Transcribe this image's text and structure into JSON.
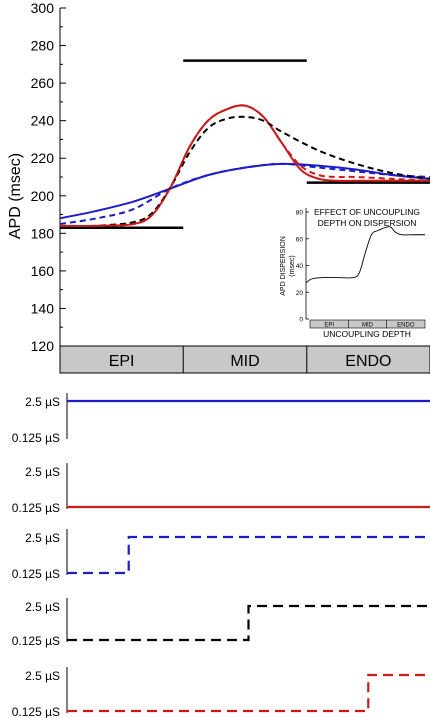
{
  "chart_data": [
    {
      "type": "line",
      "ylabel": "APD (msec)",
      "ylim": [
        120,
        300
      ],
      "yticks": [
        120,
        140,
        160,
        180,
        200,
        220,
        240,
        260,
        280,
        300
      ],
      "xlim": [
        0,
        1
      ],
      "regions": [
        "EPI",
        "MID",
        "ENDO"
      ],
      "region_bounds": [
        0,
        0.333,
        0.667,
        1
      ],
      "reference_levels": [
        {
          "x": [
            0.0,
            0.333
          ],
          "y": 183,
          "color": "#000000"
        },
        {
          "x": [
            0.333,
            0.667
          ],
          "y": 272,
          "color": "#000000"
        },
        {
          "x": [
            0.667,
            1.0
          ],
          "y": 207,
          "color": "#000000"
        }
      ],
      "series": [
        {
          "style": "solid",
          "color": "#1c1cc8",
          "x": [
            0.0,
            0.1,
            0.2,
            0.3,
            0.4,
            0.5,
            0.6,
            0.7,
            0.8,
            0.9,
            1.0
          ],
          "y": [
            188,
            192,
            197,
            204,
            211,
            215,
            217,
            216,
            214,
            211,
            209
          ]
        },
        {
          "style": "solid",
          "color": "#cc1a1a",
          "x": [
            0.0,
            0.1,
            0.2,
            0.25,
            0.3,
            0.35,
            0.4,
            0.45,
            0.5,
            0.55,
            0.6,
            0.65,
            0.7,
            0.75,
            0.8,
            0.9,
            1.0
          ],
          "y": [
            184,
            184,
            185,
            190,
            205,
            226,
            240,
            246,
            248,
            242,
            228,
            214,
            209,
            208,
            208,
            208,
            208
          ]
        },
        {
          "style": "dashed",
          "color": "#1c1cc8",
          "x": [
            0.0,
            0.1,
            0.2,
            0.3,
            0.4,
            0.5,
            0.6,
            0.7,
            0.8,
            0.9,
            1.0
          ],
          "y": [
            185,
            188,
            193,
            204,
            211,
            215,
            217,
            215,
            213,
            211,
            210
          ]
        },
        {
          "style": "dashed",
          "color": "#000000",
          "x": [
            0.0,
            0.1,
            0.2,
            0.25,
            0.3,
            0.35,
            0.4,
            0.45,
            0.5,
            0.55,
            0.6,
            0.7,
            0.8,
            0.9,
            1.0
          ],
          "y": [
            183,
            184,
            186,
            191,
            205,
            223,
            236,
            241,
            242,
            240,
            234,
            224,
            217,
            212,
            209
          ]
        },
        {
          "style": "dashed",
          "color": "#cc1a1a",
          "x": [
            0.0,
            0.1,
            0.2,
            0.25,
            0.3,
            0.35,
            0.4,
            0.45,
            0.5,
            0.55,
            0.6,
            0.65,
            0.7,
            0.75,
            0.8,
            0.9,
            1.0
          ],
          "y": [
            184,
            184,
            185,
            190,
            205,
            226,
            240,
            246,
            248,
            242,
            228,
            216,
            211,
            210,
            210,
            209,
            208
          ]
        }
      ]
    },
    {
      "type": "line",
      "title": "EFFECT OF UNCOUPLING\nDEPTH ON DISPERSION",
      "xlabel": "UNCOUPLING DEPTH",
      "ylabel": "APD DISPERSION\n(msec)",
      "ylim": [
        0,
        80
      ],
      "yticks": [
        0,
        20,
        40,
        60,
        80
      ],
      "regions": [
        "EPI",
        "MID",
        "ENDO"
      ],
      "series": [
        {
          "color": "#000000",
          "x": [
            0.0,
            0.05,
            0.15,
            0.25,
            0.4,
            0.45,
            0.5,
            0.55,
            0.6,
            0.7,
            0.75,
            0.8,
            0.9,
            1.0
          ],
          "y": [
            27,
            30,
            31,
            31,
            31,
            35,
            50,
            63,
            66,
            69,
            65,
            63,
            63,
            63
          ]
        }
      ]
    },
    {
      "type": "line",
      "chart": "coupling-profiles",
      "ytick_labels": [
        "2.5 µS",
        "0.125 µS"
      ],
      "rows": [
        {
          "style": "solid",
          "color": "#1c1cc8",
          "levels": [
            "2.5 µS"
          ],
          "step_at": null
        },
        {
          "style": "solid",
          "color": "#cc1a1a",
          "levels": [
            "0.125 µS"
          ],
          "step_at": null
        },
        {
          "style": "dashed",
          "color": "#1c1cc8",
          "levels": [
            "0.125 µS",
            "2.5 µS"
          ],
          "step_at": 0.17
        },
        {
          "style": "dashed",
          "color": "#000000",
          "levels": [
            "0.125 µS",
            "2.5 µS"
          ],
          "step_at": 0.5
        },
        {
          "style": "dashed",
          "color": "#cc1a1a",
          "levels": [
            "0.125 µS",
            "2.5 µS"
          ],
          "step_at": 0.83
        }
      ]
    }
  ]
}
